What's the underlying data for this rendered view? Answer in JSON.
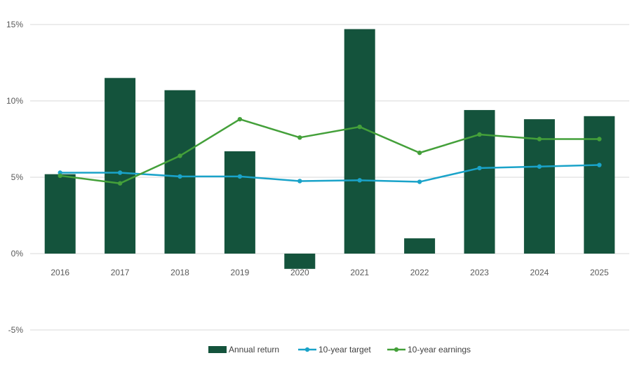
{
  "chart_data": {
    "type": "bar",
    "categories": [
      "2016",
      "2017",
      "2018",
      "2019",
      "2020",
      "2021",
      "2022",
      "2023",
      "2024",
      "2025"
    ],
    "series": [
      {
        "name": "Annual return",
        "kind": "bar",
        "color": "#14533c",
        "values": [
          5.2,
          11.5,
          10.7,
          6.7,
          -1.0,
          14.7,
          1.0,
          9.4,
          8.8,
          9.0
        ]
      },
      {
        "name": "10-year target",
        "kind": "line",
        "color": "#1aa3c9",
        "values": [
          5.3,
          5.3,
          5.05,
          5.05,
          4.75,
          4.8,
          4.7,
          5.6,
          5.7,
          5.8
        ]
      },
      {
        "name": "10-year earnings",
        "kind": "line",
        "color": "#44a03a",
        "values": [
          5.1,
          4.6,
          6.4,
          8.8,
          7.6,
          8.3,
          6.6,
          7.8,
          7.5,
          7.5
        ]
      }
    ],
    "yticks": [
      "15%",
      "10%",
      "5%",
      "0%",
      "-5%"
    ],
    "ytick_values": [
      15,
      10,
      5,
      0,
      -5
    ],
    "ylim": [
      -5,
      15
    ],
    "grid": true,
    "legend_position": "bottom-center",
    "title": "",
    "xlabel": "",
    "ylabel": ""
  }
}
